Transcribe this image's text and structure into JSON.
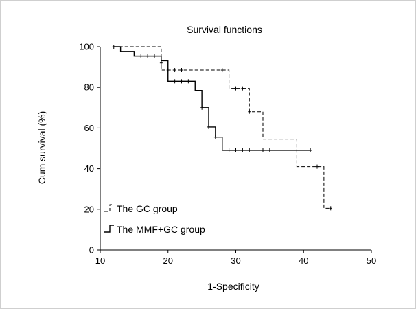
{
  "chart_data": {
    "type": "line",
    "title": "Survival functions",
    "xlabel": "1-Specificity",
    "ylabel": "Cum survival (%)",
    "xlim": [
      10,
      50
    ],
    "ylim": [
      0,
      100
    ],
    "xticks": [
      10,
      20,
      30,
      40,
      50
    ],
    "yticks": [
      0,
      20,
      40,
      60,
      80,
      100
    ],
    "grid": false,
    "legend_position": "bottom-left",
    "series": [
      {
        "name": "The GC group",
        "style": "dashed-step",
        "x": [
          12,
          17,
          19,
          29,
          32,
          34,
          39,
          43,
          44
        ],
        "y": [
          100,
          100,
          88.5,
          79.5,
          68,
          54.5,
          41,
          20.5,
          20.5
        ],
        "censored": [
          [
            12,
            100
          ],
          [
            20,
            88.5
          ],
          [
            21,
            88.5
          ],
          [
            22,
            88.5
          ],
          [
            28,
            88.5
          ],
          [
            30,
            79.5
          ],
          [
            31,
            79.5
          ],
          [
            32,
            68
          ],
          [
            42,
            41
          ],
          [
            44,
            20.5
          ]
        ]
      },
      {
        "name": "The MMF+GC group",
        "style": "solid-step",
        "x": [
          12,
          13,
          15,
          19,
          20,
          24,
          25,
          26,
          27,
          28,
          41
        ],
        "y": [
          100,
          97.7,
          95.4,
          93.1,
          83,
          78.5,
          70,
          60.5,
          55.5,
          49,
          49
        ],
        "censored": [
          [
            16,
            95.4
          ],
          [
            17,
            95.4
          ],
          [
            18,
            95.4
          ],
          [
            19,
            92
          ],
          [
            21,
            83
          ],
          [
            22,
            83
          ],
          [
            23,
            83
          ],
          [
            25,
            70
          ],
          [
            26,
            60.5
          ],
          [
            27,
            55.5
          ],
          [
            29,
            49
          ],
          [
            30,
            49
          ],
          [
            31,
            49
          ],
          [
            32,
            49
          ],
          [
            34,
            49
          ],
          [
            35,
            49
          ],
          [
            41,
            49
          ]
        ]
      }
    ]
  }
}
